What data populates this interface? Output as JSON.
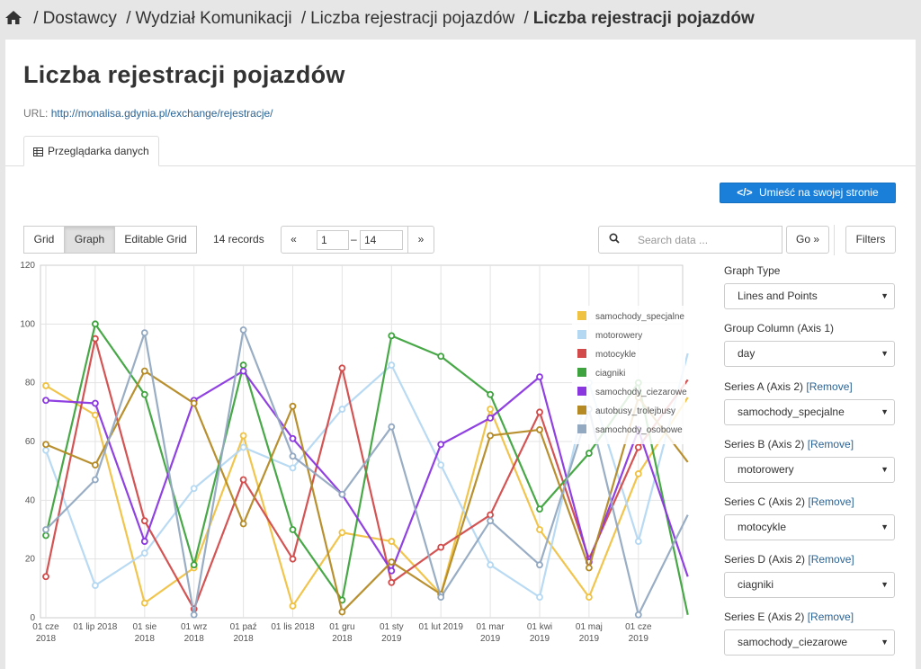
{
  "breadcrumb": {
    "items": [
      "Dostawcy",
      "Wydział Komunikacji",
      "Liczba rejestracji pojazdów"
    ],
    "current": "Liczba rejestracji pojazdów"
  },
  "page": {
    "title": "Liczba rejestracji pojazdów",
    "url_label": "URL:",
    "url": "http://monalisa.gdynia.pl/exchange/rejestracje/"
  },
  "tabs": [
    {
      "label": "Przeglądarka danych"
    }
  ],
  "toolbar": {
    "embed_icon": "</>",
    "embed_label": "Umieść na swojej stronie",
    "views": [
      "Grid",
      "Graph",
      "Editable Grid"
    ],
    "records": "14 records",
    "prev": "«",
    "next": "»",
    "from": "1",
    "to": "14",
    "search_placeholder": "Search data ...",
    "go": "Go »",
    "filters": "Filters"
  },
  "side": {
    "graph_type_label": "Graph Type",
    "graph_type": "Lines and Points",
    "group_label": "Group Column (Axis 1)",
    "group": "day",
    "remove": "[Remove]",
    "series_controls": [
      {
        "label": "Series A (Axis 2) ",
        "value": "samochody_specjalne"
      },
      {
        "label": "Series B (Axis 2) ",
        "value": "motorowery"
      },
      {
        "label": "Series C (Axis 2) ",
        "value": "motocykle"
      },
      {
        "label": "Series D (Axis 2) ",
        "value": "ciagniki"
      },
      {
        "label": "Series E (Axis 2) ",
        "value": "samochody_ciezarowe"
      }
    ]
  },
  "chart_data": {
    "type": "line",
    "title": "",
    "xlabel": "",
    "ylabel": "",
    "ylim": [
      0,
      120
    ],
    "yticks": [
      0,
      20,
      40,
      60,
      80,
      100,
      120
    ],
    "grid": true,
    "legend": "top-right",
    "x_ticks": [
      {
        "x": 0,
        "label": [
          "01 cze",
          "2018"
        ]
      },
      {
        "x": 1,
        "label": [
          "01 lip 2018"
        ]
      },
      {
        "x": 2,
        "label": [
          "01 sie",
          "2018"
        ]
      },
      {
        "x": 3,
        "label": [
          "01 wrz",
          "2018"
        ]
      },
      {
        "x": 4,
        "label": [
          "01 paź",
          "2018"
        ]
      },
      {
        "x": 5,
        "label": [
          "01 lis 2018"
        ]
      },
      {
        "x": 6,
        "label": [
          "01 gru",
          "2018"
        ]
      },
      {
        "x": 7,
        "label": [
          "01 sty",
          "2019"
        ]
      },
      {
        "x": 8,
        "label": [
          "01 lut 2019"
        ]
      },
      {
        "x": 9,
        "label": [
          "01 mar",
          "2019"
        ]
      },
      {
        "x": 10,
        "label": [
          "01 kwi",
          "2019"
        ]
      },
      {
        "x": 11,
        "label": [
          "01 maj",
          "2019"
        ]
      },
      {
        "x": 12,
        "label": [
          "01 cze",
          "2019"
        ]
      }
    ],
    "x": [
      "2018-06-01",
      "2018-07-01",
      "2018-08-01",
      "2018-09-01",
      "2018-10-01",
      "2018-11-01",
      "2018-12-01",
      "2019-01-01",
      "2019-02-01",
      "2019-03-01",
      "2019-04-01",
      "2019-05-01",
      "2019-06-01",
      "2019-07-01"
    ],
    "series": [
      {
        "name": "samochody_specjalne",
        "color": "#f0c243",
        "values": [
          79,
          69,
          5,
          17,
          62,
          4,
          29,
          26,
          8,
          71,
          30,
          7,
          49,
          75
        ]
      },
      {
        "name": "motorowery",
        "color": "#b5d8f2",
        "values": [
          57,
          11,
          22,
          44,
          58,
          51,
          71,
          86,
          52,
          18,
          7,
          80,
          26,
          90
        ]
      },
      {
        "name": "motocykle",
        "color": "#d24a4a",
        "values": [
          14,
          95,
          33,
          3,
          47,
          20,
          85,
          12,
          24,
          35,
          70,
          20,
          58,
          81
        ]
      },
      {
        "name": "ciagniki",
        "color": "#3ea33e",
        "values": [
          28,
          100,
          76,
          18,
          86,
          30,
          6,
          96,
          89,
          76,
          37,
          56,
          80,
          1
        ]
      },
      {
        "name": "samochody_ciezarowe",
        "color": "#8a37e0",
        "values": [
          74,
          73,
          26,
          74,
          84,
          61,
          42,
          16,
          59,
          68,
          82,
          19,
          64,
          14
        ]
      },
      {
        "name": "autobusy_trolejbusy",
        "color": "#b58a25",
        "values": [
          59,
          52,
          84,
          73,
          32,
          72,
          2,
          19,
          8,
          62,
          64,
          17,
          75,
          53
        ]
      },
      {
        "name": "samochody_osobowe",
        "color": "#93a9c2",
        "values": [
          30,
          47,
          97,
          1,
          98,
          55,
          42,
          65,
          7,
          33,
          18,
          71,
          1,
          35
        ]
      }
    ]
  }
}
